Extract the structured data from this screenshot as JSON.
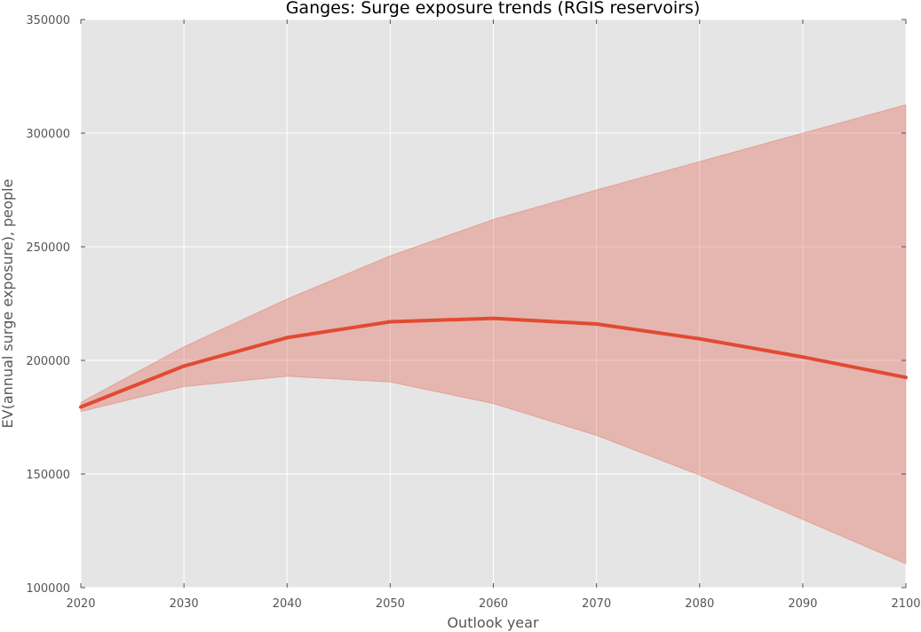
{
  "chart_data": {
    "type": "area",
    "title": "Ganges: Surge exposure trends (RGIS reservoirs)",
    "xlabel": "Outlook year",
    "ylabel": "EV(annual surge exposure), people",
    "xlim": [
      2020,
      2100
    ],
    "ylim": [
      100000,
      350000
    ],
    "x": [
      2020,
      2030,
      2040,
      2050,
      2060,
      2070,
      2080,
      2090,
      2100
    ],
    "x_ticks": [
      "2020",
      "2030",
      "2040",
      "2050",
      "2060",
      "2070",
      "2080",
      "2090",
      "2100"
    ],
    "y_ticks": [
      "100000",
      "150000",
      "200000",
      "250000",
      "300000",
      "350000"
    ],
    "grid": true,
    "series": [
      {
        "values": [
          179500,
          197500,
          210000,
          217000,
          218500,
          216000,
          209500,
          201500,
          192500
        ],
        "color": "#e24a33"
      }
    ],
    "band": {
      "lower": [
        177500,
        188500,
        193000,
        190500,
        181000,
        167000,
        149500,
        130000,
        110500
      ],
      "upper": [
        181500,
        206000,
        227000,
        246000,
        262000,
        275000,
        287500,
        300000,
        312500
      ],
      "color": "#e24a33",
      "opacity": 0.3
    },
    "colors": {
      "plot_background": "#e5e5e5",
      "grid": "#ffffff",
      "line": "#e24a33"
    }
  }
}
